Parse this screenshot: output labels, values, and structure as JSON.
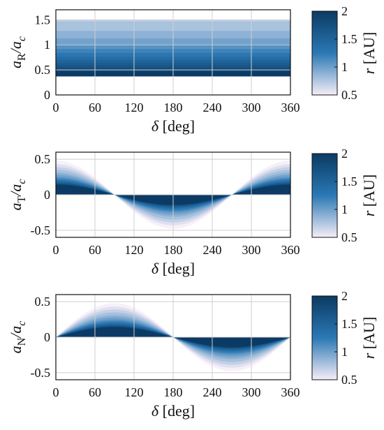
{
  "colors": {
    "dark": "#0b3a63",
    "mid": "#2a78b4",
    "light": "#f6eef7"
  },
  "chart_data": [
    {
      "type": "area",
      "panel": "top",
      "xlabel": "δ [deg]",
      "ylabel_main": "a",
      "ylabel_sub": "R",
      "ylabel_den": "/a",
      "ylabel_den_sub": "c",
      "xlim": [
        0,
        360
      ],
      "ylim": [
        0,
        1.7
      ],
      "xticks": [
        "0",
        "60",
        "120",
        "180",
        "240",
        "300",
        "360"
      ],
      "yticks": [
        "0",
        "0.5",
        "1",
        "1.5"
      ],
      "ytick_values": [
        0,
        0.5,
        1,
        1.5
      ],
      "model": "radial",
      "r_values": [
        0.5,
        0.6,
        0.7,
        0.8,
        0.9,
        1.0,
        1.1,
        1.2,
        1.3,
        1.4,
        1.5,
        1.6,
        1.7,
        1.8,
        1.9,
        2.0
      ],
      "colorbar": {
        "label": "r [AU]",
        "ticks": [
          "0.5",
          "1",
          "1.5",
          "2"
        ],
        "range": [
          0.5,
          2
        ]
      }
    },
    {
      "type": "area",
      "panel": "middle",
      "xlabel": "δ [deg]",
      "ylabel_main": "a",
      "ylabel_sub": "T",
      "ylabel_den": "/a",
      "ylabel_den_sub": "c",
      "xlim": [
        0,
        360
      ],
      "ylim": [
        -0.6,
        0.6
      ],
      "xticks": [
        "0",
        "60",
        "120",
        "180",
        "240",
        "300",
        "360"
      ],
      "yticks": [
        "-0.5",
        "0",
        "0.5"
      ],
      "ytick_values": [
        -0.5,
        0,
        0.5
      ],
      "model": "transverse",
      "amplitudes": [
        0.48,
        0.43,
        0.39,
        0.35,
        0.31,
        0.28,
        0.25,
        0.23,
        0.21,
        0.195,
        0.18,
        0.17,
        0.16,
        0.15,
        0.145,
        0.14
      ],
      "r_values": [
        0.5,
        0.6,
        0.7,
        0.8,
        0.9,
        1.0,
        1.1,
        1.2,
        1.3,
        1.4,
        1.5,
        1.6,
        1.7,
        1.8,
        1.9,
        2.0
      ],
      "colorbar": {
        "label": "r [AU]",
        "ticks": [
          "0.5",
          "1",
          "1.5",
          "2"
        ],
        "range": [
          0.5,
          2
        ]
      }
    },
    {
      "type": "area",
      "panel": "bottom",
      "xlabel": "δ [deg]",
      "ylabel_main": "a",
      "ylabel_sub": "N",
      "ylabel_den": "/a",
      "ylabel_den_sub": "c",
      "xlim": [
        0,
        360
      ],
      "ylim": [
        -0.6,
        0.6
      ],
      "xticks": [
        "0",
        "60",
        "120",
        "180",
        "240",
        "300",
        "360"
      ],
      "yticks": [
        "-0.5",
        "0",
        "0.5"
      ],
      "ytick_values": [
        -0.5,
        0,
        0.5
      ],
      "model": "normal",
      "amplitudes": [
        0.48,
        0.43,
        0.39,
        0.35,
        0.31,
        0.28,
        0.25,
        0.23,
        0.21,
        0.195,
        0.18,
        0.17,
        0.16,
        0.15,
        0.145,
        0.14
      ],
      "r_values": [
        0.5,
        0.6,
        0.7,
        0.8,
        0.9,
        1.0,
        1.1,
        1.2,
        1.3,
        1.4,
        1.5,
        1.6,
        1.7,
        1.8,
        1.9,
        2.0
      ],
      "colorbar": {
        "label": "r [AU]",
        "ticks": [
          "0.5",
          "1",
          "1.5",
          "2"
        ],
        "range": [
          0.5,
          2
        ]
      }
    }
  ]
}
